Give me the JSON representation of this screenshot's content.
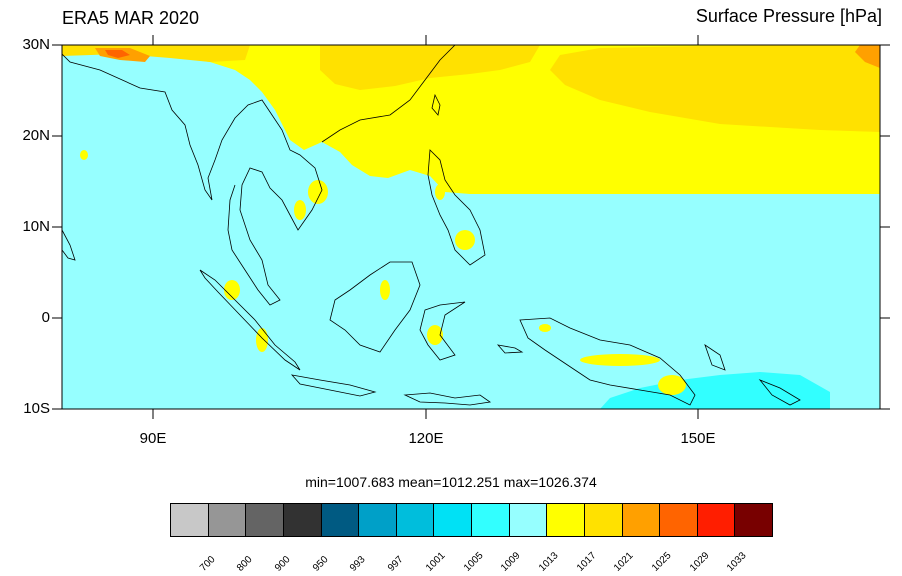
{
  "header": {
    "left_title": "ERA5 MAR 2020",
    "right_title": "Surface Pressure [hPa]"
  },
  "axes": {
    "lat_labels": [
      "30N",
      "20N",
      "10N",
      "0",
      "10S"
    ],
    "lon_labels": [
      "90E",
      "120E",
      "150E"
    ],
    "lat_range": [
      -10,
      30
    ],
    "lon_range": [
      80,
      170
    ]
  },
  "stats": {
    "text": "min=1007.683  mean=1012.251  max=1026.374"
  },
  "colorbar": {
    "colors": [
      "#c8c8c8",
      "#969696",
      "#646464",
      "#323232",
      "#005a82",
      "#00a0c8",
      "#00bedc",
      "#00e1f5",
      "#32ffff",
      "#96ffff",
      "#ffff00",
      "#ffe100",
      "#ffa000",
      "#ff6400",
      "#ff1e00",
      "#780000"
    ],
    "labels": [
      "700",
      "800",
      "900",
      "950",
      "993",
      "997",
      "1001",
      "1005",
      "1009",
      "1013",
      "1017",
      "1021",
      "1025",
      "1029",
      "1033"
    ]
  },
  "colors": {
    "sea": "#96ffff",
    "high": "#ffff00",
    "higher": "#ffe100",
    "low": "#32ffff",
    "peak": "#ffa000"
  }
}
